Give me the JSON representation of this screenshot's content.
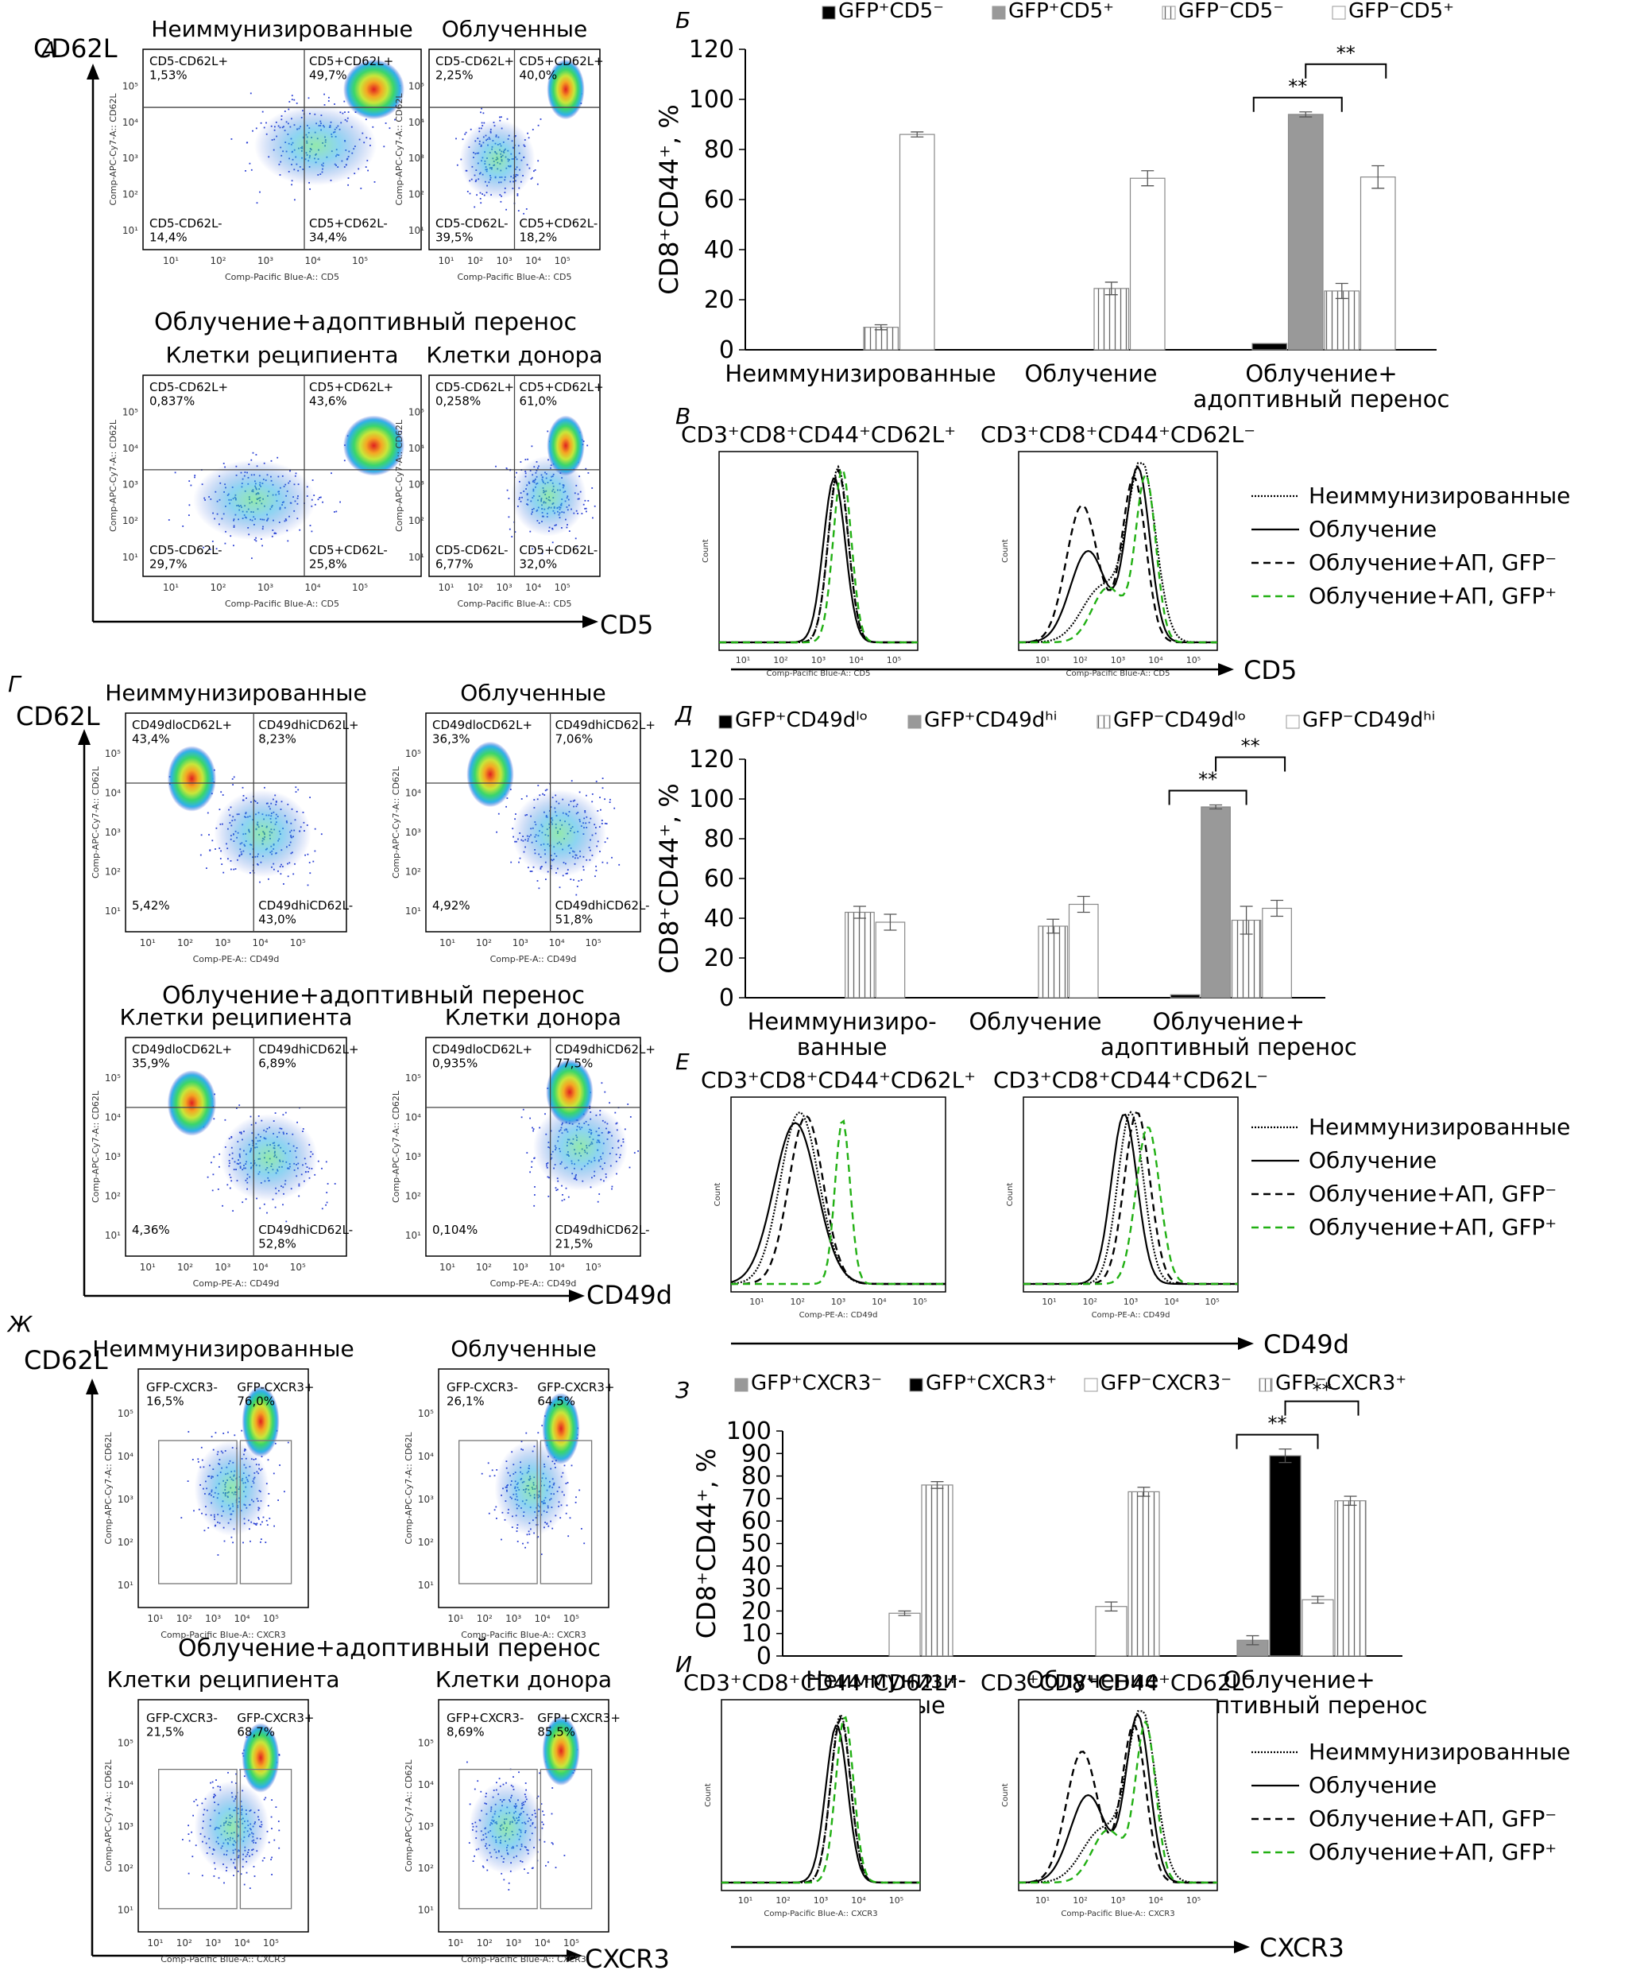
{
  "colors": {
    "black_bar": "#000000",
    "gray_bar": "#999999",
    "hist_green": "#22b014",
    "axis": "#000000"
  },
  "density_colormap": [
    "#1e3ed2",
    "#2fb2e8",
    "#3bd66a",
    "#c8e63a",
    "#f5a623",
    "#e02020"
  ],
  "panel_A": {
    "letter": "А",
    "y_axis": "CD62L",
    "x_axis": "CD5",
    "sub_heading": "Облучение+адоптивный перенос",
    "plot_xlabel": "Comp-Pacific Blue-A:: CD5",
    "plot_ylabel": "Comp-APC-Cy7-A:: CD62L",
    "plots": [
      {
        "title": "Неиммунизированные",
        "q": [
          "CD5-CD62L+\n1,53%",
          "CD5+CD62L+\n49,7%",
          "CD5-CD62L-\n14,4%",
          "CD5+CD62L-\n34,4%"
        ]
      },
      {
        "title": "Облученные",
        "q": [
          "CD5-CD62L+\n2,25%",
          "CD5+CD62L+\n40,0%",
          "CD5-CD62L-\n39,5%",
          "CD5+CD62L-\n18,2%"
        ]
      },
      {
        "title": "Клетки реципиента",
        "q": [
          "CD5-CD62L+\n0,837%",
          "CD5+CD62L+\n43,6%",
          "CD5-CD62L-\n29,7%",
          "CD5+CD62L-\n25,8%"
        ]
      },
      {
        "title": "Клетки донора",
        "q": [
          "CD5-CD62L+\n0,258%",
          "CD5+CD62L+\n61,0%",
          "CD5-CD62L-\n6,77%",
          "CD5+CD62L-\n32,0%"
        ]
      }
    ]
  },
  "panel_G": {
    "letter": "Г",
    "y_axis": "CD62L",
    "x_axis": "CD49d",
    "sub_heading": "Облучение+адоптивный перенос",
    "plot_xlabel": "Comp-PE-A:: CD49d",
    "plot_ylabel": "Comp-APC-Cy7-A:: CD62L",
    "plots": [
      {
        "title": "Неиммунизированные",
        "q": [
          "CD49dloCD62L+\n43,4%",
          "CD49dhiCD62L+\n8,23%",
          "5,42%",
          "CD49dhiCD62L-\n43,0%"
        ]
      },
      {
        "title": "Облученные",
        "q": [
          "CD49dloCD62L+\n36,3%",
          "CD49dhiCD62L+\n7,06%",
          "4,92%",
          "CD49dhiCD62L-\n51,8%"
        ]
      },
      {
        "title": "Клетки реципиента",
        "q": [
          "CD49dloCD62L+\n35,9%",
          "CD49dhiCD62L+\n6,89%",
          "4,36%",
          "CD49dhiCD62L-\n52,8%"
        ]
      },
      {
        "title": "Клетки донора",
        "q": [
          "CD49dloCD62L+\n0,935%",
          "CD49dhiCD62L+\n77,5%",
          "0,104%",
          "CD49dhiCD62L-\n21,5%"
        ]
      }
    ]
  },
  "panel_Zh": {
    "letter": "Ж",
    "y_axis": "CD62L",
    "x_axis": "CXCR3",
    "sub_heading": "Облучение+адоптивный перенос",
    "plot_xlabel": "Comp-Pacific Blue-A:: CXCR3",
    "plot_ylabel": "Comp-APC-Cy7-A:: CD62L",
    "plots": [
      {
        "title": "Неиммунизированные",
        "g": [
          "GFP-CXCR3-\n16,5%",
          "GFP-CXCR3+\n76,0%"
        ]
      },
      {
        "title": "Облученные",
        "g": [
          "GFP-CXCR3-\n26,1%",
          "GFP-CXCR3+\n64,5%"
        ]
      },
      {
        "title": "Клетки реципиента",
        "g": [
          "GFP-CXCR3-\n21,5%",
          "GFP-CXCR3+\n68,7%"
        ]
      },
      {
        "title": "Клетки донора",
        "g": [
          "GFP+CXCR3-\n8,69%",
          "GFP+CXCR3+\n85,5%"
        ]
      }
    ]
  },
  "hist_B": {
    "letter": "В",
    "titles": [
      "CD3⁺CD8⁺CD44⁺CD62L⁺",
      "CD3⁺CD8⁺CD44⁺CD62L⁻"
    ],
    "x_axis": "CD5",
    "plot_xlabel": "Comp-Pacific Blue-A:: CD5",
    "legend": [
      "Неиммунизированные",
      "Облучение",
      "Облучение+АП, GFP⁻",
      "Облучение+АП, GFP⁺"
    ]
  },
  "hist_E": {
    "letter": "Е",
    "titles": [
      "CD3⁺CD8⁺CD44⁺CD62L⁺",
      "CD3⁺CD8⁺CD44⁺CD62L⁻"
    ],
    "x_axis": "CD49d",
    "plot_xlabel": "Comp-PE-A:: CD49d",
    "legend": [
      "Неиммунизированные",
      "Облучение",
      "Облучение+АП, GFP⁻",
      "Облучение+АП, GFP⁺"
    ]
  },
  "hist_I": {
    "letter": "И",
    "titles": [
      "CD3⁺CD8⁺CD44⁺CD62L⁺",
      "CD3⁺CD8⁺CD44⁺CD62L⁻"
    ],
    "x_axis": "CXCR3",
    "plot_xlabel": "Comp-Pacific Blue-A:: CXCR3",
    "legend": [
      "Неиммунизированные",
      "Облучение",
      "Облучение+АП, GFP⁻",
      "Облучение+АП, GFP⁺"
    ]
  },
  "chart_data": [
    {
      "panel": "Б",
      "type": "bar",
      "ylabel": "CD8⁺CD44⁺, %",
      "ylim": [
        0,
        120
      ],
      "yticks": [
        0,
        20,
        40,
        60,
        80,
        100,
        120
      ],
      "categories": [
        "Неиммунизированные",
        "Облучение",
        "Облучение+\nадоптивный перенос"
      ],
      "series": [
        {
          "name": "GFP⁺CD5⁻",
          "style": "black",
          "values": [
            null,
            null,
            2.5
          ],
          "err": [
            0,
            0,
            0
          ]
        },
        {
          "name": "GFP⁺CD5⁺",
          "style": "gray",
          "values": [
            null,
            null,
            94
          ],
          "err": [
            0,
            0,
            1
          ]
        },
        {
          "name": "GFP⁻CD5⁻",
          "style": "vlines",
          "values": [
            9,
            24.5,
            23.5
          ],
          "err": [
            1,
            2.5,
            3
          ]
        },
        {
          "name": "GFP⁻CD5⁺",
          "style": "white",
          "values": [
            86,
            68.5,
            69
          ],
          "err": [
            1,
            3,
            4.5
          ]
        }
      ],
      "significance": [
        "**",
        "**"
      ]
    },
    {
      "panel": "Д",
      "type": "bar",
      "ylabel": "CD8⁺CD44⁺, %",
      "ylim": [
        0,
        120
      ],
      "yticks": [
        0,
        20,
        40,
        60,
        80,
        100,
        120
      ],
      "categories": [
        "Неиммунизиро-\nванные",
        "Облучение",
        "Облучение+\nадоптивный перенос"
      ],
      "series": [
        {
          "name": "GFP⁺CD49dˡᵒ",
          "style": "black",
          "values": [
            null,
            null,
            1.5
          ],
          "err": [
            0,
            0,
            0
          ]
        },
        {
          "name": "GFP⁺CD49dʰⁱ",
          "style": "gray",
          "values": [
            null,
            null,
            96
          ],
          "err": [
            0,
            0,
            1
          ]
        },
        {
          "name": "GFP⁻CD49dˡᵒ",
          "style": "vlines",
          "values": [
            43,
            36,
            39
          ],
          "err": [
            3,
            3.5,
            7
          ]
        },
        {
          "name": "GFP⁻CD49dʰⁱ",
          "style": "white",
          "values": [
            38,
            47,
            45
          ],
          "err": [
            4,
            4,
            4
          ]
        }
      ],
      "significance": [
        "**",
        "**"
      ]
    },
    {
      "panel": "З",
      "type": "bar",
      "ylabel": "CD8⁺CD44⁺, %",
      "ylim": [
        0,
        100
      ],
      "yticks": [
        0,
        10,
        20,
        30,
        40,
        50,
        60,
        70,
        80,
        90,
        100
      ],
      "categories": [
        "Неиммунизи-\nрованные",
        "Облучение",
        "Облучение+\nадоптивный перенос"
      ],
      "series": [
        {
          "name": "GFP⁺CXCR3⁻",
          "style": "gray",
          "values": [
            null,
            null,
            7
          ],
          "err": [
            0,
            0,
            2
          ]
        },
        {
          "name": "GFP⁺CXCR3⁺",
          "style": "black",
          "values": [
            null,
            null,
            89
          ],
          "err": [
            0,
            0,
            3
          ]
        },
        {
          "name": "GFP⁻CXCR3⁻",
          "style": "white",
          "values": [
            19,
            22,
            25
          ],
          "err": [
            1,
            2,
            1.5
          ]
        },
        {
          "name": "GFP⁻CXCR3⁺",
          "style": "vlines",
          "values": [
            76,
            73,
            69
          ],
          "err": [
            1.5,
            2,
            2
          ]
        }
      ],
      "significance": [
        "**",
        "**"
      ]
    }
  ]
}
